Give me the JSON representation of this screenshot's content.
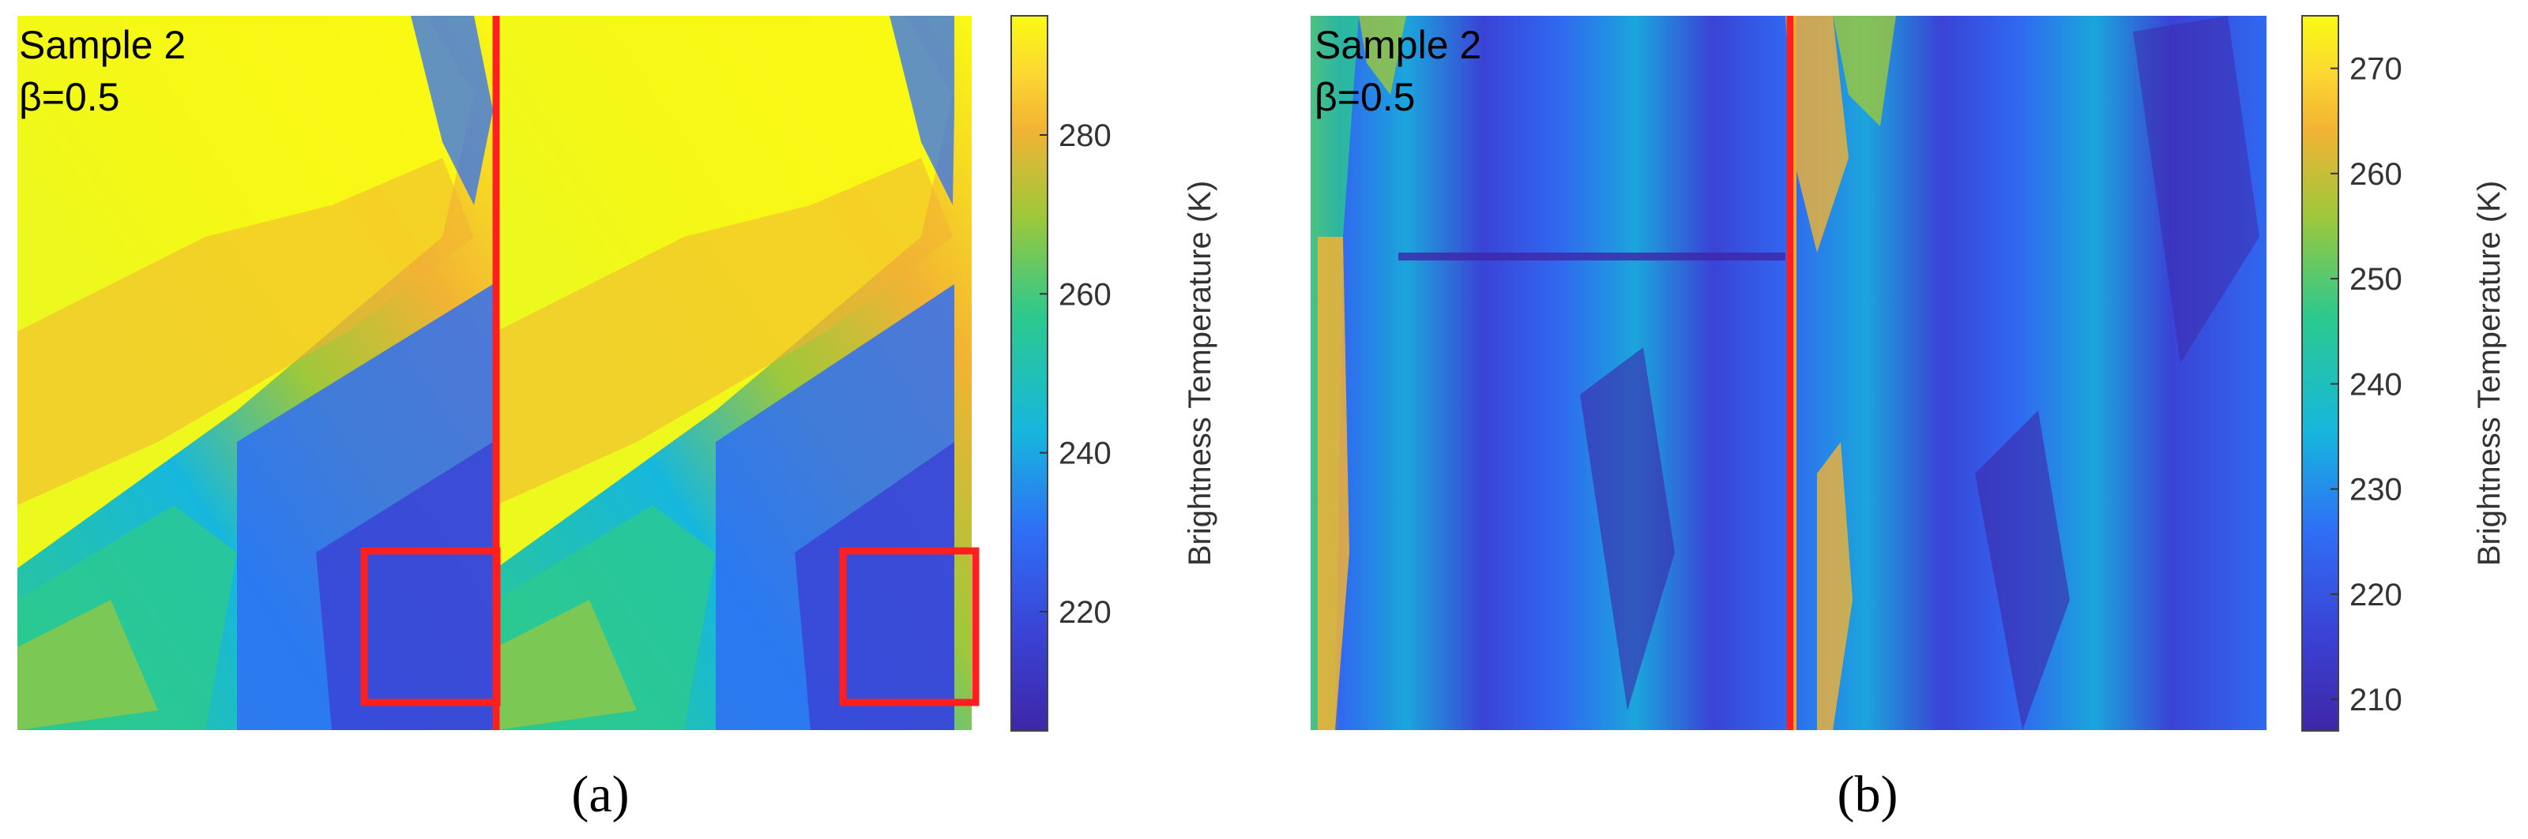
{
  "chart_data": [
    {
      "type": "heatmap",
      "panel_label": "(a)",
      "annotations": [
        "Sample 2",
        "β=0.5"
      ],
      "colorbar": {
        "label": "Brightness Temperature (K)",
        "range": [
          205,
          295
        ],
        "ticks": [
          220,
          240,
          260,
          280
        ]
      },
      "colormap": [
        "#3e26a8",
        "#2f6ff5",
        "#16b7dd",
        "#2cc98e",
        "#9ec83a",
        "#f2b334",
        "#fcd831",
        "#f9fb14"
      ],
      "markers": {
        "vertical_line_color": "#ff1f1f",
        "boxes": 2
      }
    },
    {
      "type": "heatmap",
      "panel_label": "(b)",
      "annotations": [
        "Sample 2",
        "β=0.5"
      ],
      "colorbar": {
        "label": "Brightness Temperature (K)",
        "range": [
          207,
          275
        ],
        "ticks": [
          210,
          220,
          230,
          240,
          250,
          260,
          270
        ]
      },
      "colormap": [
        "#3e26a8",
        "#2f6ff5",
        "#16b7dd",
        "#2cc98e",
        "#9ec83a",
        "#f2b334",
        "#fcd831",
        "#f9fb14"
      ],
      "markers": {
        "vertical_line_color": "#ff1f1f",
        "boxes": 0
      }
    }
  ]
}
